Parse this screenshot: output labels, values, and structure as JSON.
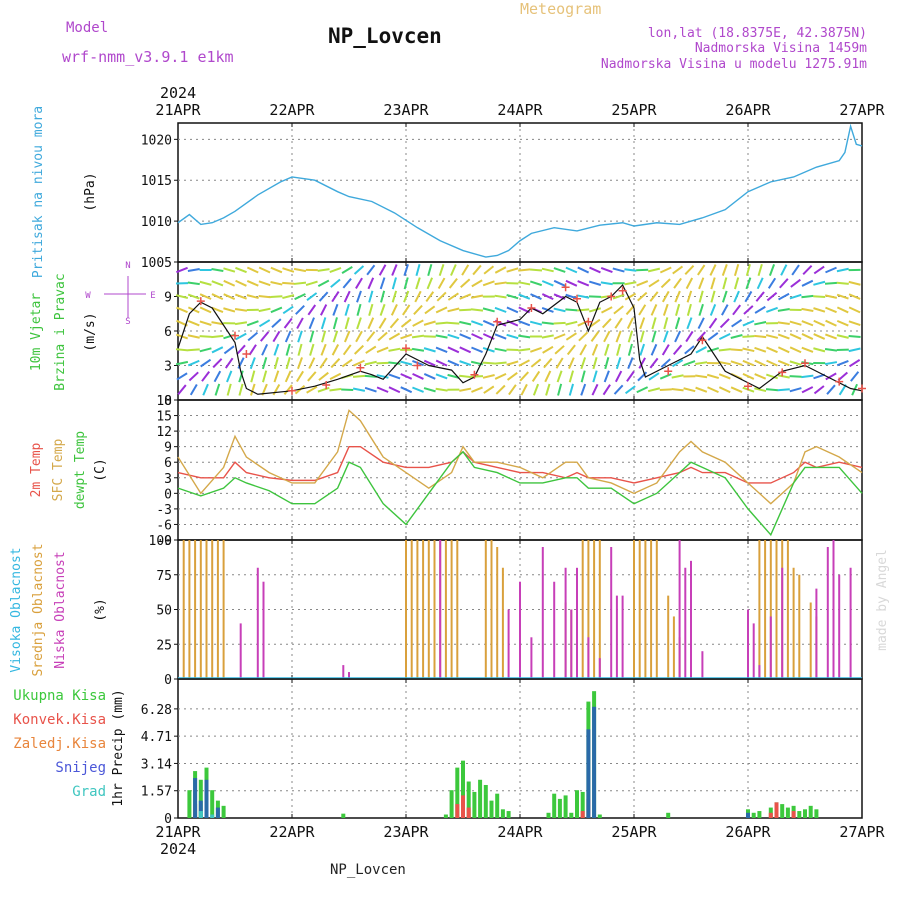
{
  "header": {
    "model_label": "Model",
    "model_name": "wrf-nmm_v3.9.1 e1km",
    "title": "NP_Lovcen",
    "subtitle": "Meteogram",
    "lonlat": "lon,lat (18.8375E, 42.3875N)",
    "elevation": "Nadmorska Visina 1459m",
    "model_elevation": "Nadmorska Visina u modelu 1275.91m",
    "footer": "NP_Lovcen",
    "credit": "made by Angel",
    "year_top": "2024",
    "year_bottom": "2024"
  },
  "colors": {
    "pressure": "#3fa9dc",
    "temp2m": "#e8534a",
    "sfc": "#d4a84a",
    "dewpt": "#3ec43e",
    "high": "#34b7e0",
    "mid": "#d9a03c",
    "low": "#c73fb8",
    "total_precip": "#3cc83c",
    "conv": "#e8534a",
    "frozen": "#e8853c",
    "snow": "#4b57d8",
    "grad": "#3fc6c0",
    "gray_line": "#111111",
    "label_purple": "#b048cc"
  },
  "x_axis": {
    "dates": [
      "21APR",
      "22APR",
      "23APR",
      "24APR",
      "25APR",
      "26APR",
      "27APR"
    ]
  },
  "chart_data": [
    {
      "type": "line",
      "id": "pressure",
      "ylabel": [
        "Pritisak na nivou mora",
        "(hPa)"
      ],
      "yticks": [
        "1005",
        "1010",
        "1015",
        "1020"
      ],
      "ylim": [
        1005,
        1022
      ],
      "series": [
        {
          "x": [
            0,
            0.1,
            0.2,
            0.3,
            0.4,
            0.5,
            0.7,
            0.9,
            1.0,
            1.2,
            1.4,
            1.5,
            1.7,
            1.9,
            2.1,
            2.3,
            2.5,
            2.7,
            2.8,
            2.9,
            3.0,
            3.1,
            3.3,
            3.5,
            3.7,
            3.9,
            4.0,
            4.2,
            4.4,
            4.6,
            4.8,
            5.0,
            5.2,
            5.4,
            5.6,
            5.8,
            5.85,
            5.9,
            5.95,
            6.0
          ],
          "values": [
            1009.8,
            1010.8,
            1009.6,
            1009.8,
            1010.4,
            1011.2,
            1013.2,
            1014.8,
            1015.4,
            1015.0,
            1013.6,
            1013.0,
            1012.4,
            1011.0,
            1009.2,
            1007.6,
            1006.4,
            1005.6,
            1005.8,
            1006.4,
            1007.6,
            1008.5,
            1009.2,
            1008.8,
            1009.5,
            1009.8,
            1009.4,
            1009.8,
            1009.6,
            1010.4,
            1011.4,
            1013.6,
            1014.8,
            1015.4,
            1016.6,
            1017.4,
            1018.4,
            1021.6,
            1019.4,
            1019.2
          ]
        }
      ]
    },
    {
      "type": "line",
      "id": "wind",
      "ylabel": [
        "10m Vjetar",
        "Brzina i Pravac",
        "(m/s)"
      ],
      "compass": [
        "N",
        "W",
        "E",
        "S"
      ],
      "yticks": [
        "0",
        "3",
        "6",
        "9"
      ],
      "ylim": [
        0,
        12
      ],
      "series": [
        {
          "name": "wind_speed",
          "x": [
            0,
            0.1,
            0.2,
            0.3,
            0.4,
            0.5,
            0.55,
            0.6,
            0.7,
            1.0,
            1.2,
            1.4,
            1.6,
            1.7,
            1.8,
            2.0,
            2.2,
            2.4,
            2.5,
            2.6,
            2.7,
            2.8,
            3.0,
            3.1,
            3.2,
            3.4,
            3.5,
            3.6,
            3.7,
            3.8,
            3.9,
            4.0,
            4.05,
            4.1,
            4.3,
            4.5,
            4.6,
            4.8,
            5.0,
            5.1,
            5.3,
            5.5,
            5.7,
            5.9,
            6.0
          ],
          "values": [
            4.5,
            7.5,
            8.5,
            8.0,
            6.5,
            5.0,
            2.5,
            1.0,
            0.5,
            0.8,
            1.2,
            1.8,
            2.5,
            2.2,
            1.8,
            4.0,
            3.0,
            2.6,
            1.5,
            2.0,
            4.0,
            6.5,
            7.0,
            8.0,
            7.5,
            9.0,
            8.5,
            6.0,
            8.5,
            9.0,
            10.0,
            8.0,
            3.5,
            2.0,
            3.0,
            4.0,
            5.5,
            2.5,
            1.5,
            1.0,
            2.5,
            3.0,
            2.0,
            1.0,
            0.8
          ]
        },
        {
          "name": "gust_markers",
          "x": [
            0.2,
            0.5,
            0.6,
            1.0,
            1.3,
            1.6,
            2.0,
            2.1,
            2.6,
            2.8,
            3.1,
            3.4,
            3.5,
            3.6,
            3.8,
            3.9,
            4.3,
            4.6,
            5.0,
            5.3,
            5.5,
            5.8,
            6.0
          ],
          "values": [
            8.6,
            5.6,
            4.0,
            0.8,
            1.3,
            2.8,
            4.5,
            3.0,
            2.2,
            6.8,
            8.0,
            9.8,
            8.8,
            6.8,
            9.0,
            9.5,
            2.5,
            5.2,
            1.2,
            2.4,
            3.2,
            1.6,
            1.0
          ]
        }
      ]
    },
    {
      "type": "line",
      "id": "temperature",
      "ylabel": [
        "2m Temp",
        "SFC Temp",
        "dewpt Temp",
        "(C)"
      ],
      "yticks": [
        "-9",
        "-6",
        "-3",
        "0",
        "3",
        "6",
        "9",
        "12",
        "15",
        "18"
      ],
      "ylim": [
        -9,
        18
      ],
      "series": [
        {
          "name": "2m Temp",
          "x": [
            0,
            0.2,
            0.4,
            0.5,
            0.6,
            0.8,
            1.0,
            1.2,
            1.4,
            1.5,
            1.6,
            1.8,
            2.0,
            2.2,
            2.4,
            2.5,
            2.6,
            2.8,
            3.0,
            3.2,
            3.4,
            3.5,
            3.6,
            3.8,
            4.0,
            4.2,
            4.4,
            4.5,
            4.6,
            4.8,
            5.0,
            5.2,
            5.4,
            5.5,
            5.6,
            5.8,
            6.0
          ],
          "values": [
            4,
            3,
            3,
            6,
            4,
            3,
            2.5,
            2.5,
            4,
            9,
            9,
            6,
            5,
            5,
            6,
            8,
            6,
            5,
            4,
            4,
            3,
            4,
            3,
            3,
            2,
            3,
            4,
            5,
            4,
            4,
            2,
            2,
            4,
            6,
            5,
            6,
            5
          ]
        },
        {
          "name": "SFC Temp",
          "x": [
            0,
            0.2,
            0.4,
            0.5,
            0.6,
            0.8,
            1.0,
            1.2,
            1.4,
            1.5,
            1.6,
            1.8,
            2.0,
            2.2,
            2.4,
            2.5,
            2.6,
            2.8,
            3.0,
            3.2,
            3.4,
            3.5,
            3.6,
            3.8,
            4.0,
            4.2,
            4.4,
            4.5,
            4.6,
            4.8,
            5.0,
            5.2,
            5.4,
            5.5,
            5.6,
            5.8,
            6.0
          ],
          "values": [
            7,
            0,
            5,
            11,
            7,
            4,
            2,
            2,
            8,
            16,
            14,
            7,
            4,
            1,
            4,
            9,
            6,
            6,
            5,
            3,
            6,
            6,
            3,
            2,
            0,
            2,
            8,
            10,
            8,
            6,
            2,
            -2,
            2,
            8,
            9,
            7,
            4
          ]
        },
        {
          "name": "dewpt Temp",
          "x": [
            0,
            0.2,
            0.4,
            0.5,
            0.6,
            0.8,
            1.0,
            1.2,
            1.4,
            1.5,
            1.6,
            1.8,
            2.0,
            2.2,
            2.4,
            2.5,
            2.6,
            2.8,
            3.0,
            3.2,
            3.4,
            3.5,
            3.6,
            3.8,
            4.0,
            4.2,
            4.4,
            4.5,
            4.6,
            4.8,
            5.0,
            5.2,
            5.4,
            5.5,
            5.6,
            5.8,
            6.0
          ],
          "values": [
            1,
            -0.5,
            1,
            3,
            2,
            0.5,
            -2,
            -2,
            1,
            6,
            5,
            -2,
            -6,
            0,
            6,
            8,
            5,
            4,
            2,
            2,
            3,
            3,
            1,
            1,
            -2,
            0,
            4,
            6,
            5,
            3,
            -3,
            -8,
            2,
            5,
            5,
            5,
            0
          ]
        }
      ]
    },
    {
      "type": "bar",
      "id": "clouds",
      "ylabel": [
        "Visoka Oblacnost",
        "Srednja Oblacnost",
        "Niska Oblacnost",
        "(%)"
      ],
      "yticks": [
        "0",
        "25",
        "50",
        "75",
        "100"
      ],
      "ylim": [
        0,
        100
      ],
      "series": [
        {
          "name": "Srednja Oblacnost",
          "x": [
            0.05,
            0.1,
            0.15,
            0.2,
            0.25,
            0.3,
            0.35,
            0.4,
            2.0,
            2.05,
            2.1,
            2.15,
            2.2,
            2.25,
            2.3,
            2.35,
            2.4,
            2.45,
            2.7,
            2.75,
            2.8,
            2.85,
            3.4,
            3.45,
            3.5,
            3.55,
            3.6,
            3.65,
            3.7,
            4.0,
            4.05,
            4.1,
            4.15,
            4.2,
            4.3,
            4.35,
            4.4,
            5.1,
            5.15,
            5.2,
            5.25,
            5.3,
            5.35,
            5.4,
            5.45,
            5.55,
            5.6
          ],
          "values": [
            100,
            100,
            100,
            100,
            100,
            100,
            100,
            100,
            100,
            100,
            100,
            100,
            100,
            100,
            100,
            100,
            100,
            100,
            100,
            100,
            95,
            80,
            55,
            50,
            30,
            100,
            100,
            100,
            100,
            100,
            100,
            100,
            100,
            100,
            60,
            45,
            30,
            100,
            100,
            100,
            100,
            100,
            100,
            80,
            75,
            55,
            45
          ]
        },
        {
          "name": "Niska Oblacnost",
          "x": [
            0.55,
            0.7,
            0.75,
            1.45,
            1.5,
            2.3,
            2.9,
            3.0,
            3.1,
            3.2,
            3.3,
            3.4,
            3.45,
            3.5,
            3.6,
            3.7,
            3.8,
            3.85,
            3.9,
            4.4,
            4.45,
            4.5,
            4.6,
            5.0,
            5.05,
            5.1,
            5.2,
            5.3,
            5.6,
            5.7,
            5.75,
            5.8,
            5.9
          ],
          "values": [
            40,
            80,
            70,
            10,
            5,
            100,
            50,
            70,
            30,
            95,
            70,
            80,
            50,
            80,
            30,
            15,
            95,
            60,
            60,
            100,
            80,
            85,
            20,
            50,
            40,
            10,
            45,
            80,
            65,
            95,
            100,
            75,
            80
          ]
        }
      ]
    },
    {
      "type": "bar",
      "id": "precip",
      "ylabel": [
        "1hr Precip (mm)"
      ],
      "legend": [
        "Ukupna Kisa",
        "Konvek.Kisa",
        "Zaledj.Kisa",
        "Snijeg",
        "Grad"
      ],
      "yticks": [
        "0",
        "1.57",
        "3.14",
        "4.71",
        "6.28"
      ],
      "ylim": [
        0,
        8.0
      ],
      "series": [
        {
          "name": "Ukupna Kisa",
          "x": [
            0.1,
            0.15,
            0.2,
            0.25,
            0.3,
            0.35,
            0.4,
            1.45,
            2.35,
            2.4,
            2.45,
            2.5,
            2.55,
            2.6,
            2.65,
            2.7,
            2.75,
            2.8,
            2.85,
            2.9,
            3.25,
            3.3,
            3.35,
            3.4,
            3.45,
            3.5,
            3.55,
            3.6,
            3.65,
            3.7,
            4.3,
            5.0,
            5.05,
            5.1,
            5.2,
            5.25,
            5.3,
            5.35,
            5.4,
            5.45,
            5.5,
            5.55,
            5.6
          ],
          "values": [
            1.6,
            2.7,
            2.2,
            2.9,
            1.6,
            1.0,
            0.7,
            0.25,
            0.2,
            1.6,
            2.9,
            3.3,
            2.1,
            1.5,
            2.2,
            1.9,
            1.0,
            1.4,
            0.5,
            0.4,
            0.3,
            1.4,
            1.1,
            1.3,
            0.3,
            1.6,
            1.5,
            6.7,
            7.3,
            0.2,
            0.3,
            0.5,
            0.3,
            0.4,
            0.6,
            0.9,
            0.8,
            0.6,
            0.7,
            0.4,
            0.5,
            0.7,
            0.5
          ]
        },
        {
          "name": "Konvek.Kisa",
          "x": [
            0.15,
            0.25,
            2.45,
            2.5,
            2.55,
            3.55,
            3.6,
            5.2,
            5.25,
            5.4
          ],
          "values": [
            0.8,
            0.9,
            0.8,
            1.3,
            0.6,
            0.4,
            1.1,
            0.3,
            0.9,
            0.4
          ]
        },
        {
          "name": "Snijeg",
          "x": [
            0.15,
            0.2,
            0.25,
            0.35,
            3.6,
            3.65,
            5.0
          ],
          "values": [
            2.3,
            1.0,
            2.2,
            0.6,
            5.1,
            6.4,
            0.3
          ]
        },
        {
          "name": "Grad",
          "x": [
            0.2,
            0.3
          ],
          "values": [
            0.4,
            0.2
          ]
        }
      ]
    }
  ]
}
